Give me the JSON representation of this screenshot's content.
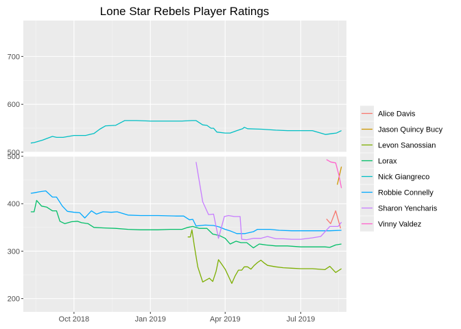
{
  "chart_data": {
    "type": "line",
    "title": "Lone Star Rebels Player Ratings",
    "xlabel": "",
    "ylabel": "",
    "x_ticks": [
      {
        "date": "2018-10-01",
        "label": "Oct 2018"
      },
      {
        "date": "2019-01-01",
        "label": "Jan 2019"
      },
      {
        "date": "2019-04-01",
        "label": "Apr 2019"
      },
      {
        "date": "2019-07-01",
        "label": "Jul 2019"
      }
    ],
    "xlim": [
      "2018-08-01",
      "2019-08-25"
    ],
    "upper_panel": {
      "ylim": [
        500,
        775
      ],
      "y_ticks": [
        500,
        600,
        700
      ]
    },
    "lower_panel": {
      "ylim": [
        172,
        500
      ],
      "y_ticks": [
        200,
        300,
        400,
        500
      ]
    },
    "grid": true,
    "legend_position": "right",
    "series": [
      {
        "name": "Alice Davis",
        "color": "#F8766D",
        "points": [
          [
            "2019-08-01",
            368
          ],
          [
            "2019-08-06",
            358
          ],
          [
            "2019-08-12",
            385
          ],
          [
            "2019-08-18",
            348
          ]
        ]
      },
      {
        "name": "Jason Quincy Bucy",
        "color": "#CD9600",
        "points": [
          [
            "2019-08-14",
            440
          ],
          [
            "2019-08-19",
            478
          ]
        ]
      },
      {
        "name": "Levon Sanossian",
        "color": "#7CAE00",
        "points": [
          [
            "2019-02-15",
            330
          ],
          [
            "2019-02-18",
            330
          ],
          [
            "2019-02-20",
            345
          ],
          [
            "2019-02-23",
            310
          ],
          [
            "2019-02-27",
            267
          ],
          [
            "2019-03-05",
            235
          ],
          [
            "2019-03-10",
            240
          ],
          [
            "2019-03-13",
            243
          ],
          [
            "2019-03-17",
            236
          ],
          [
            "2019-03-21",
            257
          ],
          [
            "2019-03-24",
            282
          ],
          [
            "2019-03-28",
            272
          ],
          [
            "2019-04-01",
            262
          ],
          [
            "2019-04-05",
            247
          ],
          [
            "2019-04-09",
            232
          ],
          [
            "2019-04-13",
            248
          ],
          [
            "2019-04-17",
            260
          ],
          [
            "2019-04-21",
            260
          ],
          [
            "2019-04-24",
            267
          ],
          [
            "2019-04-28",
            267
          ],
          [
            "2019-05-02",
            262
          ],
          [
            "2019-05-06",
            270
          ],
          [
            "2019-05-10",
            276
          ],
          [
            "2019-05-14",
            281
          ],
          [
            "2019-05-18",
            275
          ],
          [
            "2019-05-22",
            270
          ],
          [
            "2019-06-01",
            267
          ],
          [
            "2019-06-10",
            265
          ],
          [
            "2019-06-20",
            264
          ],
          [
            "2019-07-01",
            263
          ],
          [
            "2019-07-15",
            263
          ],
          [
            "2019-07-30",
            261
          ],
          [
            "2019-08-05",
            268
          ],
          [
            "2019-08-12",
            255
          ],
          [
            "2019-08-19",
            263
          ]
        ]
      },
      {
        "name": "Lorax",
        "color": "#00BE67",
        "points": [
          [
            "2018-08-10",
            383
          ],
          [
            "2018-08-14",
            383
          ],
          [
            "2018-08-17",
            407
          ],
          [
            "2018-08-23",
            395
          ],
          [
            "2018-08-29",
            393
          ],
          [
            "2018-09-05",
            385
          ],
          [
            "2018-09-10",
            385
          ],
          [
            "2018-09-14",
            363
          ],
          [
            "2018-09-20",
            358
          ],
          [
            "2018-09-28",
            362
          ],
          [
            "2018-10-05",
            363
          ],
          [
            "2018-10-10",
            360
          ],
          [
            "2018-10-18",
            358
          ],
          [
            "2018-10-25",
            350
          ],
          [
            "2018-11-05",
            349
          ],
          [
            "2018-11-20",
            348
          ],
          [
            "2018-12-05",
            346
          ],
          [
            "2018-12-20",
            345
          ],
          [
            "2019-01-10",
            345
          ],
          [
            "2019-01-25",
            346
          ],
          [
            "2019-02-08",
            346
          ],
          [
            "2019-02-15",
            350
          ],
          [
            "2019-02-21",
            352
          ],
          [
            "2019-03-01",
            348
          ],
          [
            "2019-03-10",
            348
          ],
          [
            "2019-03-17",
            336
          ],
          [
            "2019-03-25",
            333
          ],
          [
            "2019-04-01",
            327
          ],
          [
            "2019-04-07",
            315
          ],
          [
            "2019-04-14",
            321
          ],
          [
            "2019-04-20",
            318
          ],
          [
            "2019-04-27",
            318
          ],
          [
            "2019-05-05",
            307
          ],
          [
            "2019-05-12",
            315
          ],
          [
            "2019-05-20",
            313
          ],
          [
            "2019-06-01",
            311
          ],
          [
            "2019-06-15",
            311
          ],
          [
            "2019-07-01",
            309
          ],
          [
            "2019-07-15",
            309
          ],
          [
            "2019-07-30",
            309
          ],
          [
            "2019-08-05",
            308
          ],
          [
            "2019-08-12",
            313
          ],
          [
            "2019-08-19",
            315
          ]
        ]
      },
      {
        "name": "Nick Giangreco",
        "color": "#00BFC4",
        "points": [
          [
            "2018-08-10",
            519
          ],
          [
            "2018-08-14",
            520
          ],
          [
            "2018-08-24",
            525
          ],
          [
            "2018-09-05",
            533
          ],
          [
            "2018-09-10",
            531
          ],
          [
            "2018-09-18",
            531
          ],
          [
            "2018-10-01",
            535
          ],
          [
            "2018-10-15",
            535
          ],
          [
            "2018-10-25",
            539
          ],
          [
            "2018-11-01",
            548
          ],
          [
            "2018-11-08",
            555
          ],
          [
            "2018-11-20",
            556
          ],
          [
            "2018-12-01",
            566
          ],
          [
            "2018-12-15",
            566
          ],
          [
            "2019-01-01",
            565
          ],
          [
            "2019-01-20",
            565
          ],
          [
            "2019-02-08",
            565
          ],
          [
            "2019-02-20",
            566
          ],
          [
            "2019-02-25",
            566
          ],
          [
            "2019-03-05",
            557
          ],
          [
            "2019-03-10",
            556
          ],
          [
            "2019-03-15",
            550
          ],
          [
            "2019-03-18",
            550
          ],
          [
            "2019-03-22",
            542
          ],
          [
            "2019-04-01",
            540
          ],
          [
            "2019-04-07",
            540
          ],
          [
            "2019-04-15",
            545
          ],
          [
            "2019-04-22",
            549
          ],
          [
            "2019-04-24",
            552
          ],
          [
            "2019-04-28",
            549
          ],
          [
            "2019-05-15",
            548
          ],
          [
            "2019-06-01",
            546
          ],
          [
            "2019-06-15",
            545
          ],
          [
            "2019-07-01",
            545
          ],
          [
            "2019-07-15",
            545
          ],
          [
            "2019-07-31",
            537
          ],
          [
            "2019-08-08",
            539
          ],
          [
            "2019-08-13",
            540
          ],
          [
            "2019-08-19",
            545
          ]
        ]
      },
      {
        "name": "Robbie Connelly",
        "color": "#00A9FF",
        "points": [
          [
            "2018-08-10",
            422
          ],
          [
            "2018-08-14",
            423
          ],
          [
            "2018-08-20",
            425
          ],
          [
            "2018-08-28",
            427
          ],
          [
            "2018-09-05",
            414
          ],
          [
            "2018-09-10",
            414
          ],
          [
            "2018-09-17",
            395
          ],
          [
            "2018-09-23",
            384
          ],
          [
            "2018-10-01",
            382
          ],
          [
            "2018-10-08",
            381
          ],
          [
            "2018-10-14",
            370
          ],
          [
            "2018-10-22",
            385
          ],
          [
            "2018-10-28",
            378
          ],
          [
            "2018-11-05",
            383
          ],
          [
            "2018-11-15",
            382
          ],
          [
            "2018-11-22",
            383
          ],
          [
            "2018-12-05",
            376
          ],
          [
            "2018-12-20",
            375
          ],
          [
            "2019-01-10",
            375
          ],
          [
            "2019-02-01",
            374
          ],
          [
            "2019-02-10",
            374
          ],
          [
            "2019-02-17",
            366
          ],
          [
            "2019-02-21",
            367
          ],
          [
            "2019-02-25",
            353
          ],
          [
            "2019-03-08",
            355
          ],
          [
            "2019-03-18",
            354
          ],
          [
            "2019-03-25",
            351
          ],
          [
            "2019-04-01",
            346
          ],
          [
            "2019-04-08",
            342
          ],
          [
            "2019-04-15",
            337
          ],
          [
            "2019-04-25",
            337
          ],
          [
            "2019-05-05",
            341
          ],
          [
            "2019-05-10",
            346
          ],
          [
            "2019-05-25",
            346
          ],
          [
            "2019-06-05",
            344
          ],
          [
            "2019-06-20",
            343
          ],
          [
            "2019-07-01",
            343
          ],
          [
            "2019-07-20",
            343
          ],
          [
            "2019-08-05",
            343
          ],
          [
            "2019-08-19",
            344
          ]
        ]
      },
      {
        "name": "Sharon Yencharis",
        "color": "#C77CFF",
        "points": [
          [
            "2019-02-25",
            488
          ],
          [
            "2019-03-05",
            404
          ],
          [
            "2019-03-12",
            377
          ],
          [
            "2019-03-18",
            378
          ],
          [
            "2019-03-24",
            327
          ],
          [
            "2019-03-31",
            373
          ],
          [
            "2019-04-05",
            375
          ],
          [
            "2019-04-12",
            373
          ],
          [
            "2019-04-19",
            373
          ],
          [
            "2019-04-21",
            325
          ],
          [
            "2019-04-27",
            324
          ],
          [
            "2019-05-05",
            327
          ],
          [
            "2019-05-14",
            327
          ],
          [
            "2019-05-22",
            331
          ],
          [
            "2019-06-01",
            326
          ],
          [
            "2019-06-10",
            326
          ],
          [
            "2019-06-20",
            325
          ],
          [
            "2019-07-01",
            325
          ],
          [
            "2019-07-15",
            328
          ],
          [
            "2019-07-25",
            331
          ],
          [
            "2019-08-05",
            352
          ],
          [
            "2019-08-10",
            352
          ],
          [
            "2019-08-15",
            352
          ],
          [
            "2019-08-19",
            361
          ]
        ]
      },
      {
        "name": "Vinny Valdez",
        "color": "#FF61CC",
        "points": [
          [
            "2019-08-01",
            493
          ],
          [
            "2019-08-06",
            488
          ],
          [
            "2019-08-12",
            486
          ],
          [
            "2019-08-16",
            460
          ],
          [
            "2019-08-19",
            433
          ]
        ]
      }
    ]
  }
}
